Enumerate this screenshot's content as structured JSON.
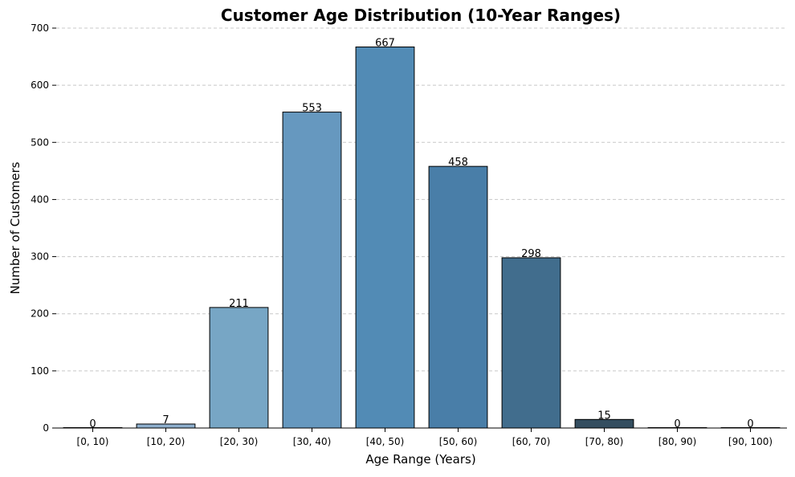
{
  "chart_data": {
    "type": "bar",
    "title": "Customer Age Distribution (10-Year Ranges)",
    "xlabel": "Age Range (Years)",
    "ylabel": "Number of Customers",
    "categories": [
      "[0, 10)",
      "[10, 20)",
      "[20, 30)",
      "[30, 40)",
      "[40, 50)",
      "[50, 60)",
      "[60, 70)",
      "[70, 80)",
      "[80, 90)",
      "[90, 100)"
    ],
    "values": [
      0,
      7,
      211,
      553,
      667,
      458,
      298,
      15,
      0,
      0
    ],
    "bar_colors": [
      "#a3bfd6",
      "#8eafcd",
      "#77a6c5",
      "#6698bf",
      "#528bb5",
      "#497ea8",
      "#416d8d",
      "#344e60",
      "#2a3d4b",
      "#263844"
    ],
    "bar_edge_color": "#000000",
    "ylim": [
      0,
      700
    ],
    "yticks": [
      0,
      100,
      200,
      300,
      400,
      500,
      600,
      700
    ],
    "grid": "y-dashed",
    "data_labels": true
  }
}
